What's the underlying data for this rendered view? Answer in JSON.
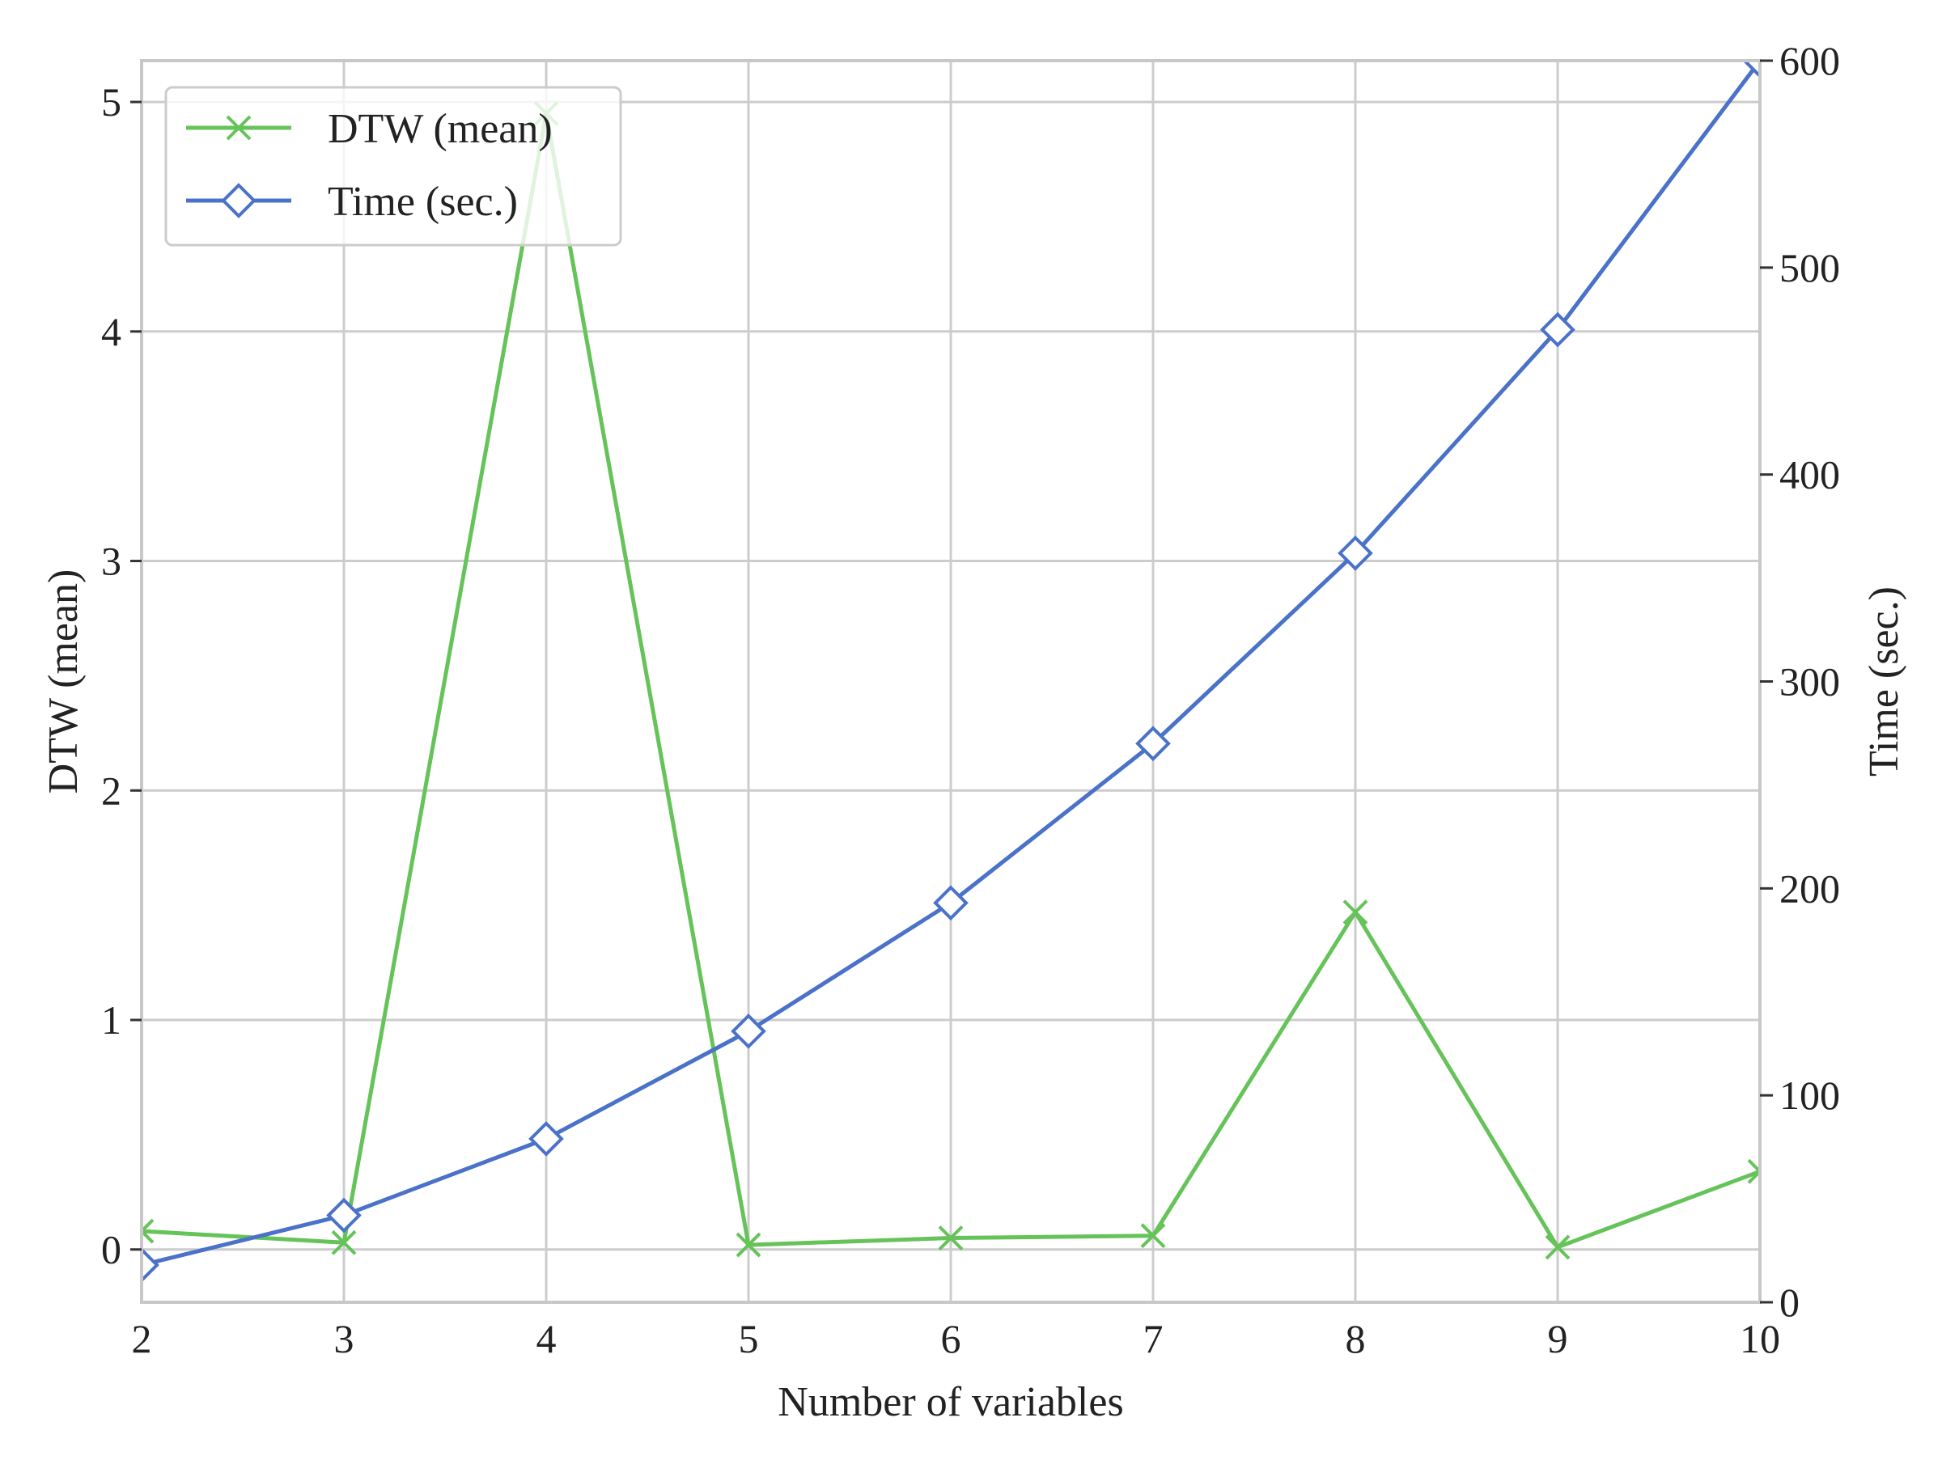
{
  "chart_data": {
    "type": "line",
    "xlabel": "Number of variables",
    "ylabel_left": "DTW (mean)",
    "ylabel_right": "Time (sec.)",
    "x": [
      2,
      3,
      4,
      5,
      6,
      7,
      8,
      9,
      10
    ],
    "xlim": [
      2,
      10
    ],
    "xticks": [
      "2",
      "3",
      "4",
      "5",
      "6",
      "7",
      "8",
      "9",
      "10"
    ],
    "ylim_left": [
      -0.23,
      5.18
    ],
    "yticks_left": [
      "0",
      "1",
      "2",
      "3",
      "4",
      "5"
    ],
    "ylim_right": [
      0,
      600
    ],
    "yticks_right": [
      "0",
      "100",
      "200",
      "300",
      "400",
      "500",
      "600"
    ],
    "grid": true,
    "legend_position": "upper-left",
    "series": [
      {
        "name": "DTW (mean)",
        "axis": "left",
        "color": "#66c35a",
        "marker": "x",
        "values": [
          0.08,
          0.03,
          4.95,
          0.02,
          0.05,
          0.06,
          1.47,
          0.01,
          0.34
        ]
      },
      {
        "name": "Time (sec.)",
        "axis": "right",
        "color": "#4a72c8",
        "marker": "diamond",
        "values": [
          18,
          42,
          79,
          131,
          193,
          270,
          362,
          470,
          600
        ]
      }
    ]
  }
}
